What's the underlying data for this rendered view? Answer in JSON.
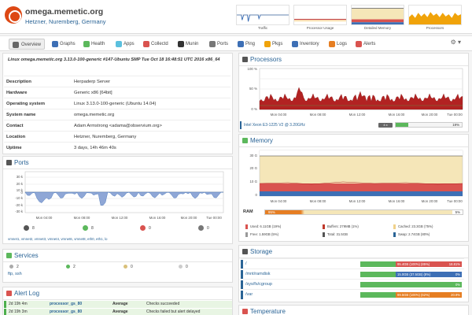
{
  "header": {
    "title": "omega.memetic.org",
    "subtitle": "Hetzner, Nuremberg, Germany",
    "sparklines": [
      {
        "label": "Traffic",
        "color": "#3d6fb5"
      },
      {
        "label": "Processor Usage",
        "color": "#c0392b"
      },
      {
        "label": "Detailed Memory",
        "color": "#e9c46a"
      },
      {
        "label": "Processors",
        "color": "#f0a30a"
      }
    ]
  },
  "nav": {
    "items": [
      {
        "label": "Overview",
        "icon": "home-icon",
        "color": "#555"
      },
      {
        "label": "Graphs",
        "icon": "graphs-icon",
        "color": "#3d6fb5"
      },
      {
        "label": "Health",
        "icon": "health-icon",
        "color": "#5cb85c"
      },
      {
        "label": "Apps",
        "icon": "apps-icon",
        "color": "#5bc0de"
      },
      {
        "label": "Collectd",
        "icon": "collectd-icon",
        "color": "#d9534f"
      },
      {
        "label": "Munin",
        "icon": "munin-icon",
        "color": "#333"
      },
      {
        "label": "Ports",
        "icon": "ports-icon",
        "color": "#555"
      },
      {
        "label": "Ping",
        "icon": "ping-icon",
        "color": "#3d6fb5"
      },
      {
        "label": "Pkgs",
        "icon": "packages-icon",
        "color": "#f0a30a"
      },
      {
        "label": "Inventory",
        "icon": "inventory-icon",
        "color": "#3d6fb5"
      },
      {
        "label": "Logs",
        "icon": "logs-icon",
        "color": "#e67e22"
      },
      {
        "label": "Alerts",
        "icon": "alerts-icon",
        "color": "#d9534f"
      }
    ]
  },
  "system": {
    "uname": "Linux omega.memetic.org 3.13.0-100-generic #147-Ubuntu SMP Tue Oct 18 16:48:51 UTC 2016 x86_64",
    "rows": [
      {
        "key": "Description",
        "value": "Herpaderp Server"
      },
      {
        "key": "Hardware",
        "value": "Generic x86 [64bit]"
      },
      {
        "key": "Operating system",
        "value": "Linux 3.13.0-100-generic (Ubuntu 14.04)"
      },
      {
        "key": "System name",
        "value": "omega.memetic.org"
      },
      {
        "key": "Contact",
        "value": "Adam Armstrong <adama@observium.org>"
      },
      {
        "key": "Location",
        "value": "Hetzner, Nuremberg, Germany"
      },
      {
        "key": "Uptime",
        "value": "3 days, 14h 46m 40s"
      }
    ]
  },
  "ports": {
    "title": "Ports",
    "x_ticks": [
      "Mon 04:00",
      "Mon 08:00",
      "Mon 12:00",
      "Mon 16:00",
      "Mon 20:00",
      "Tue 00:00"
    ],
    "y_ticks": [
      "30 k",
      "20 k",
      "10 k",
      "0",
      "-10 k",
      "-20 k",
      "-30 k"
    ],
    "stats": [
      {
        "value": "8",
        "color": "#555"
      },
      {
        "value": "8",
        "color": "#5cb85c"
      },
      {
        "value": "0",
        "color": "#d9534f"
      },
      {
        "value": "0",
        "color": "#777"
      }
    ],
    "links": "vmnet1, vmnet2, vmnet3, vmnet4, vmnet6, vmnet8, eth0, eth1, lo"
  },
  "services": {
    "title": "Services",
    "stats": [
      "2",
      "2",
      "0",
      "0"
    ],
    "links": "ftp, ssh"
  },
  "alertlog": {
    "title": "Alert Log",
    "rows": [
      {
        "age": "2d 19h 4m",
        "entity": "processor_gs_80",
        "check": "Average",
        "status": "Checks succeeded"
      },
      {
        "age": "2d 19h 3m",
        "entity": "processor_gs_80",
        "check": "Average",
        "status": "Checks failed but alert delayed"
      }
    ]
  },
  "processors": {
    "title": "Processors",
    "x_ticks": [
      "Mon 04:00",
      "Mon 08:00",
      "Mon 12:00",
      "Mon 16:00",
      "Mon 20:00",
      "Tue 00:00"
    ],
    "y_ticks": [
      "100 %",
      "50 %",
      "0 %"
    ],
    "cpu_name": "Intel Xeon E3-1225 V2 @ 3.20GHz",
    "cpu_count": "4 x",
    "usage_percent": 19,
    "usage_label": "19%"
  },
  "memory": {
    "title": "Memory",
    "x_ticks": [
      "Mon 04:00",
      "Mon 08:00",
      "Mon 12:00",
      "Mon 16:00",
      "Mon 20:00",
      "Tue 00:00"
    ],
    "y_ticks": [
      "30 G",
      "20 G",
      "10 G",
      "0"
    ],
    "ram_label": "RAM",
    "ram_used_label": "95%",
    "ram_free_label": "5%",
    "ram_used_percent": 95,
    "legend": [
      {
        "text": "Used: 6.11GB (19%)",
        "color": "#d9534f"
      },
      {
        "text": "Buffers: 279MB (1%)",
        "color": "#c0392b"
      },
      {
        "text": "Cached: 23.3GB (75%)",
        "color": "#f0d18a"
      },
      {
        "text": "Free: 1.59GB (5%)",
        "color": "#999"
      },
      {
        "text": "Total: 31.5GB",
        "color": "#555"
      },
      {
        "text": "Swap: 2.74GB (80%)",
        "color": "#2a6496"
      }
    ]
  },
  "storage": {
    "title": "Storage",
    "rows": [
      {
        "mount": "/",
        "mid": "95.4GB (100%) (85%)",
        "pct": "18.81%",
        "bar": "#d9534f",
        "width": 40
      },
      {
        "mount": "/mnt/ramdisk",
        "mid": "15.0GB (37.5GB) (8%)",
        "pct": "0%",
        "bar": "#3d6fb5",
        "width": 40
      },
      {
        "mount": "/sys/fs/cgroup",
        "mid": "",
        "pct": "0%",
        "bar": "#5cb85c",
        "width": 0
      },
      {
        "mount": "/var",
        "mid": "99.5GB (100%) (62%)",
        "pct": "20.9%",
        "bar": "#e67e22",
        "width": 40
      }
    ]
  },
  "temperature": {
    "title": "Temperature"
  }
}
